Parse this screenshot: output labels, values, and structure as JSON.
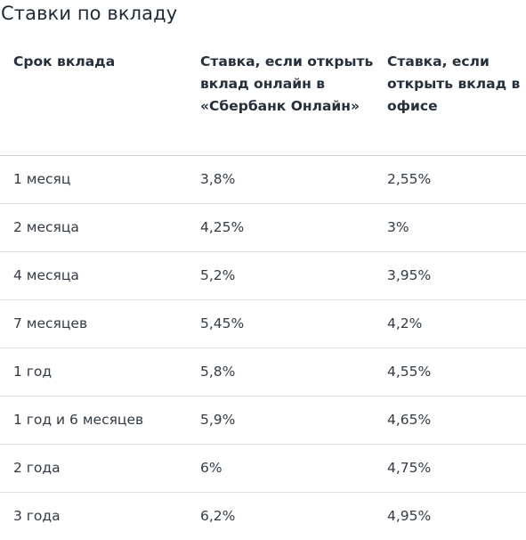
{
  "title": "Ставки по вкладу",
  "table": {
    "headers": [
      "Срок вклада",
      "Ставка, если открыть вклад онлайн в «Сбербанк Онлайн»",
      "Ставка, если открыть вклад в офисе"
    ],
    "rows": [
      [
        "1 месяц",
        "3,8%",
        "2,55%"
      ],
      [
        "2 месяца",
        "4,25%",
        "3%"
      ],
      [
        "4 месяца",
        "5,2%",
        "3,95%"
      ],
      [
        "7 месяцев",
        "5,45%",
        "4,2%"
      ],
      [
        "1 год",
        "5,8%",
        "4,55%"
      ],
      [
        "1 год и 6 месяцев",
        "5,9%",
        "4,65%"
      ],
      [
        "2 года",
        "6%",
        "4,75%"
      ],
      [
        "3 года",
        "6,2%",
        "4,95%"
      ]
    ]
  }
}
